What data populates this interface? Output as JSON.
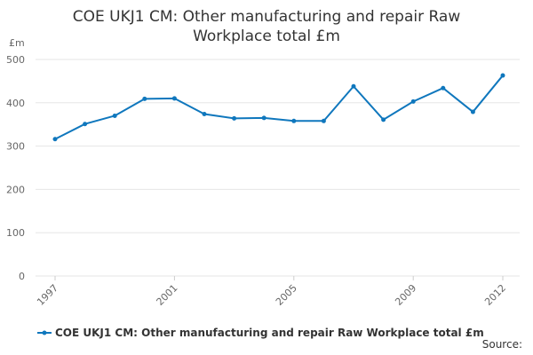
{
  "chart_data": {
    "type": "line",
    "title": "COE UKJ1 CM: Other manufacturing and repair Raw Workplace total £m",
    "y_label": "£m",
    "source": "Source:",
    "x": [
      1997,
      1998,
      1999,
      2000,
      2001,
      2002,
      2003,
      2004,
      2005,
      2006,
      2007,
      2008,
      2009,
      2010,
      2011,
      2012
    ],
    "xlim": [
      1997,
      2012
    ],
    "xticks": [
      1997,
      2001,
      2005,
      2009,
      2012
    ],
    "ylim": [
      0,
      500
    ],
    "yticks": [
      0,
      100,
      200,
      300,
      400,
      500
    ],
    "grid": true,
    "series": [
      {
        "name": "COE UKJ1 CM: Other manufacturing and repair Raw Workplace total £m",
        "color": "#0f77bd",
        "values": [
          316,
          351,
          370,
          409,
          410,
          374,
          364,
          365,
          358,
          358,
          438,
          361,
          403,
          434,
          379,
          463
        ]
      }
    ]
  }
}
